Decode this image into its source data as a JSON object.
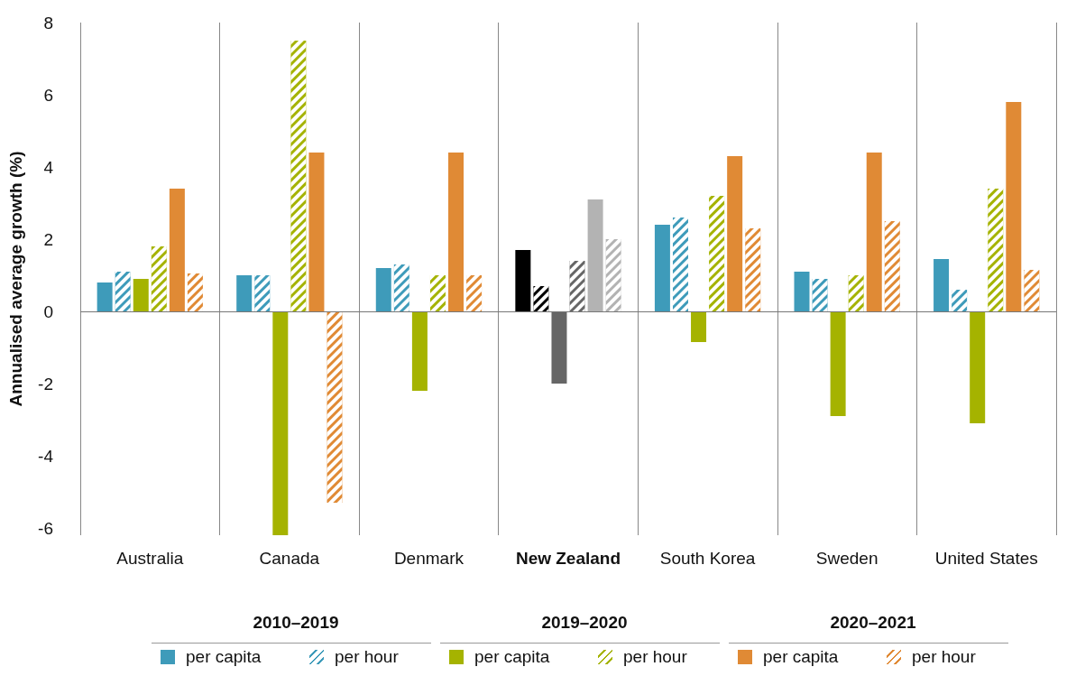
{
  "chart_data": {
    "type": "bar",
    "ylabel": "Annualised average growth (%)",
    "categories": [
      "Australia",
      "Canada",
      "Denmark",
      "New Zealand",
      "South Korea",
      "Sweden",
      "United States"
    ],
    "annotations": [
      "2010–2019",
      "2019–2020",
      "2020–2021"
    ],
    "series": [
      {
        "name": "per capita",
        "color": "#3e9bba",
        "colors": [
          "#3e9bba",
          "#3e9bba",
          "#3e9bba",
          "#000000",
          "#3e9bba",
          "#3e9bba",
          "#3e9bba"
        ],
        "values": [
          0.8,
          1.0,
          1.2,
          1.7,
          2.4,
          1.1,
          1.45
        ]
      },
      {
        "name": "per hour",
        "color": "#3e9bba",
        "colors": [
          "#3e9bba",
          "#3e9bba",
          "#3e9bba",
          "#000000",
          "#3e9bba",
          "#3e9bba",
          "#3e9bba"
        ],
        "values": [
          1.1,
          1.0,
          1.3,
          0.7,
          2.6,
          0.9,
          0.6
        ]
      },
      {
        "name": "per capita",
        "color": "#a5b300",
        "colors": [
          "#a5b300",
          "#a5b300",
          "#a5b300",
          "#666666",
          "#a5b300",
          "#a5b300",
          "#a5b300"
        ],
        "values": [
          0.9,
          -6.2,
          -2.2,
          -2.0,
          -0.85,
          -2.9,
          -3.1
        ]
      },
      {
        "name": "per hour",
        "color": "#a5b300",
        "colors": [
          "#a5b300",
          "#a5b300",
          "#a5b300",
          "#666666",
          "#a5b300",
          "#a5b300",
          "#a5b300"
        ],
        "values": [
          1.8,
          7.5,
          1.0,
          1.4,
          3.2,
          1.0,
          3.4
        ]
      },
      {
        "name": "per capita",
        "color": "#e08a35",
        "colors": [
          "#e08a35",
          "#e08a35",
          "#e08a35",
          "#b3b3b3",
          "#e08a35",
          "#e08a35",
          "#e08a35"
        ],
        "values": [
          3.4,
          4.4,
          4.4,
          3.1,
          4.3,
          4.4,
          5.8
        ]
      },
      {
        "name": "per hour",
        "color": "#e08a35",
        "colors": [
          "#e08a35",
          "#e08a35",
          "#e08a35",
          "#b3b3b3",
          "#e08a35",
          "#e08a35",
          "#e08a35"
        ],
        "values": [
          1.05,
          -5.3,
          1.0,
          2.0,
          2.3,
          2.5,
          1.15
        ]
      }
    ],
    "ylim": [
      -6.2,
      8
    ],
    "yticks": [
      -6,
      -4,
      -2,
      0,
      2,
      4,
      6,
      8
    ],
    "grid": "x",
    "legend": "bottom"
  }
}
